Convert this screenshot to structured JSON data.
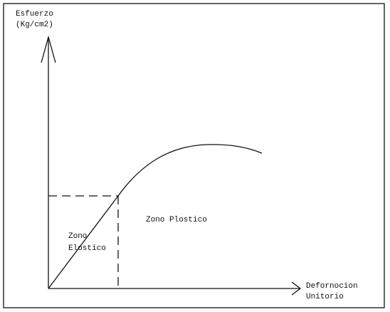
{
  "y_axis_label": [
    "Esfuerzo",
    "(Kg/cm2)"
  ],
  "x_axis_label": [
    "Defornocion",
    "Unitorio"
  ],
  "plastic_zone_label": "Zono Plostico",
  "elastic_zone_label": [
    "Zono",
    "Elostico"
  ]
}
